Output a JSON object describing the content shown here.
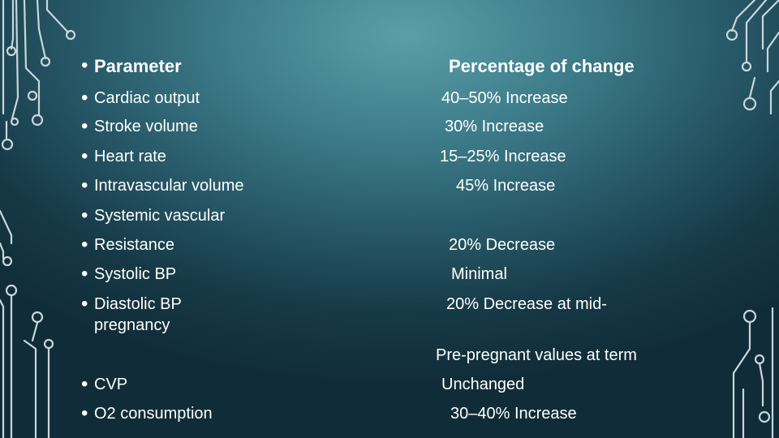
{
  "slide": {
    "header": {
      "parameter": "Parameter",
      "change": "Percentage of change"
    },
    "rows": [
      {
        "parameter": "Cardiac output",
        "change": "40–50% Increase"
      },
      {
        "parameter": "Stroke volume",
        "change": "30% Increase"
      },
      {
        "parameter": "Heart rate",
        "change": "15–25% Increase"
      },
      {
        "parameter": "Intravascular volume",
        "change": "45% Increase"
      },
      {
        "parameter": "Systemic vascular",
        "change": ""
      },
      {
        "parameter": "Resistance",
        "change": "20% Decrease"
      },
      {
        "parameter": "Systolic BP",
        "change": "Minimal"
      },
      {
        "parameter": "Diastolic BP",
        "parameter_cont": "pregnancy",
        "change": "20% Decrease at mid-"
      },
      {
        "parameter": "",
        "change": "Pre-pregnant values at term"
      },
      {
        "parameter": "CVP",
        "change": "Unchanged"
      },
      {
        "parameter": "O2 consumption",
        "change": "30–40% Increase"
      }
    ]
  },
  "theme": {
    "background": "#3f7f8d",
    "text": "#ffffff",
    "circuit": "#c9d6dc"
  }
}
